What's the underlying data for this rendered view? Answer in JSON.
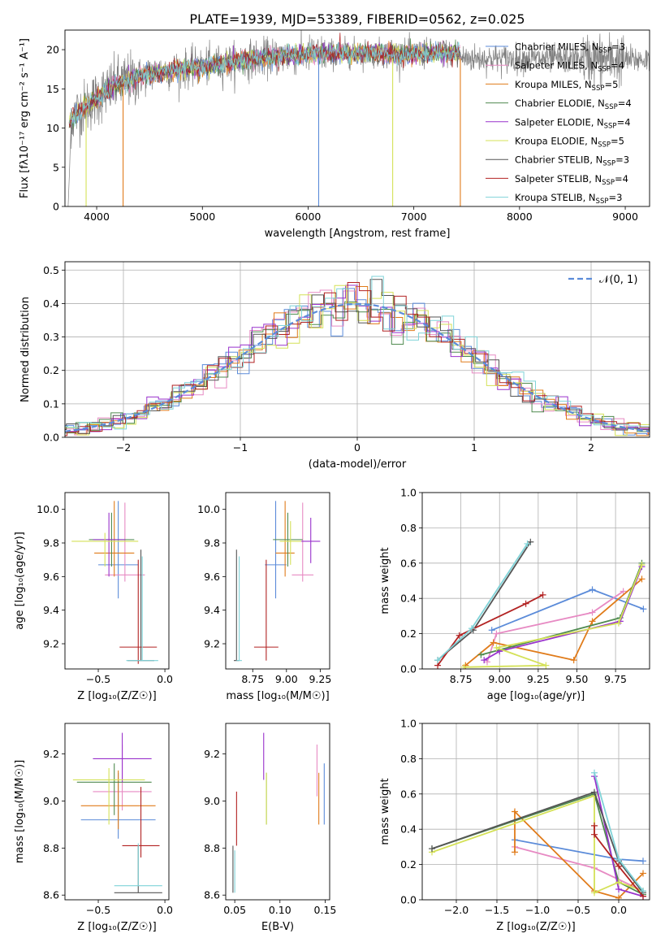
{
  "figure": {
    "title": "PLATE=1939, MJD=53389, FIBERID=0562, z=0.025"
  },
  "colors": {
    "chabrier_miles": "#5b8bd9",
    "salpeter_miles": "#e78ac3",
    "kroupa_miles": "#e07b1a",
    "chabrier_elodie": "#4f8a4f",
    "salpeter_elodie": "#9932cc",
    "kroupa_elodie": "#d4e157",
    "chabrier_stelib": "#555555",
    "salpeter_stelib": "#b22222",
    "kroupa_stelib": "#7fd3d8",
    "normal": "#5b8bd9",
    "spectrum": "#808080"
  },
  "chart_data": [
    {
      "id": "spectrum",
      "type": "line",
      "xlabel": "wavelength [Angstrom, rest frame]",
      "ylabel": "Flux [fλ10⁻¹⁷ erg cm⁻² s⁻¹ A⁻¹]",
      "xlim": [
        3700,
        9230
      ],
      "ylim": [
        0,
        22.5
      ],
      "xticks": [
        4000,
        5000,
        6000,
        7000,
        8000,
        9000
      ],
      "yticks": [
        0,
        5,
        10,
        15,
        20
      ],
      "legend_position": "top-right",
      "series": [
        {
          "name": "Chabrier MILES, N",
          "sub": "SSP",
          "suffix": "=3",
          "color_key": "chabrier_miles"
        },
        {
          "name": "Salpeter MILES, N",
          "sub": "SSP",
          "suffix": "=4",
          "color_key": "salpeter_miles"
        },
        {
          "name": "Kroupa MILES, N",
          "sub": "SSP",
          "suffix": "=5",
          "color_key": "kroupa_miles"
        },
        {
          "name": "Chabrier ELODIE, N",
          "sub": "SSP",
          "suffix": "=4",
          "color_key": "chabrier_elodie"
        },
        {
          "name": "Salpeter ELODIE, N",
          "sub": "SSP",
          "suffix": "=4",
          "color_key": "salpeter_elodie"
        },
        {
          "name": "Kroupa ELODIE, N",
          "sub": "SSP",
          "suffix": "=5",
          "color_key": "kroupa_elodie"
        },
        {
          "name": "Chabrier STELIB, N",
          "sub": "SSP",
          "suffix": "=3",
          "color_key": "chabrier_stelib"
        },
        {
          "name": "Salpeter STELIB, N",
          "sub": "SSP",
          "suffix": "=4",
          "color_key": "salpeter_stelib"
        },
        {
          "name": "Kroupa STELIB, N",
          "sub": "SSP",
          "suffix": "=3",
          "color_key": "kroupa_stelib"
        }
      ],
      "continuum": {
        "x": [
          3730,
          3800,
          3900,
          4000,
          4100,
          4200,
          4400,
          4600,
          4800,
          5000,
          5200,
          5400,
          5600,
          5800,
          6000,
          6200,
          6400,
          6600,
          6800,
          7000,
          7200,
          7400,
          7440
        ],
        "y": [
          10.5,
          11.8,
          12.8,
          13.8,
          14.8,
          15.6,
          16.5,
          17.2,
          17.5,
          17.8,
          18.2,
          18.7,
          19.0,
          19.2,
          19.4,
          19.5,
          19.6,
          19.6,
          19.4,
          19.4,
          19.6,
          19.5,
          19.4
        ]
      },
      "model_dropouts": [
        {
          "x": 3900,
          "color_key": "kroupa_elodie"
        },
        {
          "x": 4250,
          "color_key": "kroupa_miles"
        },
        {
          "x": 6100,
          "color_key": "chabrier_miles"
        },
        {
          "x": 6800,
          "color_key": "kroupa_elodie"
        },
        {
          "x": 7440,
          "color_key": "kroupa_miles"
        }
      ]
    },
    {
      "id": "residual_histogram",
      "type": "line",
      "xlabel": "(data-model)/error",
      "ylabel": "Normed distribution",
      "xlim": [
        -2.5,
        2.5
      ],
      "ylim": [
        0,
        0.525
      ],
      "xticks": [
        -2,
        -1,
        0,
        1,
        2
      ],
      "yticks": [
        0.0,
        0.1,
        0.2,
        0.3,
        0.4,
        0.5
      ],
      "grid": true,
      "legend_position": "top-right",
      "normal_label": "𝒩(0, 1)",
      "bin_width": 0.1,
      "approx_profile": "normal distribution, peak ~0.40-0.50 near 0"
    },
    {
      "id": "age_vs_Z",
      "type": "scatter",
      "xlabel": "Z [log₁₀(Z/Z☉)]",
      "ylabel": "age  [log₁₀(age/yr)]",
      "xlim": [
        -0.75,
        0.03
      ],
      "ylim": [
        9.05,
        10.1
      ],
      "xticks": [
        -0.5,
        0.0
      ],
      "yticks": [
        9.2,
        9.4,
        9.6,
        9.8,
        10.0
      ],
      "points": [
        {
          "x": -0.35,
          "y": 9.67,
          "xerr": 0.15,
          "yerr": [
            0.2,
            0.38
          ],
          "color_key": "chabrier_miles"
        },
        {
          "x": -0.3,
          "y": 9.61,
          "xerr": 0.15,
          "yerr": [
            0.04,
            0.43
          ],
          "color_key": "salpeter_miles"
        },
        {
          "x": -0.38,
          "y": 9.74,
          "xerr": 0.15,
          "yerr": [
            0.14,
            0.31
          ],
          "color_key": "kroupa_miles"
        },
        {
          "x": -0.4,
          "y": 9.82,
          "xerr": 0.17,
          "yerr": [
            0.16,
            0.16
          ],
          "color_key": "chabrier_elodie"
        },
        {
          "x": -0.42,
          "y": 9.82,
          "xerr": 0.12,
          "yerr": [
            0.22,
            0.16
          ],
          "color_key": "salpeter_elodie"
        },
        {
          "x": -0.45,
          "y": 9.81,
          "xerr": 0.25,
          "yerr": [
            0.15,
            0.05
          ],
          "color_key": "kroupa_elodie"
        },
        {
          "x": -0.18,
          "y": 9.1,
          "xerr": 0.1,
          "yerr": [
            0.0,
            0.66
          ],
          "color_key": "chabrier_stelib"
        },
        {
          "x": -0.2,
          "y": 9.18,
          "xerr": 0.14,
          "yerr": [
            0.1,
            0.52
          ],
          "color_key": "salpeter_stelib"
        },
        {
          "x": -0.17,
          "y": 9.1,
          "xerr": 0.12,
          "yerr": [
            0.0,
            0.62
          ],
          "color_key": "kroupa_stelib"
        }
      ]
    },
    {
      "id": "age_vs_mass",
      "type": "scatter",
      "xlabel": "mass [log₁₀(M/M☉)]",
      "ylabel": "",
      "xlim": [
        8.55,
        9.32
      ],
      "ylim": [
        9.05,
        10.1
      ],
      "xticks": [
        8.75,
        9.0,
        9.25
      ],
      "yticks": [
        9.2,
        9.4,
        9.6,
        9.8,
        10.0
      ],
      "points": [
        {
          "x": 8.92,
          "y": 9.67,
          "xerr": 0.08,
          "yerr": [
            0.2,
            0.38
          ],
          "color_key": "chabrier_miles"
        },
        {
          "x": 9.12,
          "y": 9.61,
          "xerr": 0.08,
          "yerr": [
            0.04,
            0.43
          ],
          "color_key": "salpeter_miles"
        },
        {
          "x": 8.99,
          "y": 9.74,
          "xerr": 0.07,
          "yerr": [
            0.14,
            0.31
          ],
          "color_key": "kroupa_miles"
        },
        {
          "x": 9.01,
          "y": 9.82,
          "xerr": 0.11,
          "yerr": [
            0.16,
            0.16
          ],
          "color_key": "chabrier_elodie"
        },
        {
          "x": 9.18,
          "y": 9.81,
          "xerr": 0.07,
          "yerr": [
            0.13,
            0.14
          ],
          "color_key": "salpeter_elodie"
        },
        {
          "x": 9.03,
          "y": 9.81,
          "xerr": 0.08,
          "yerr": [
            0.14,
            0.12
          ],
          "color_key": "kroupa_elodie"
        },
        {
          "x": 8.63,
          "y": 9.1,
          "xerr": 0.02,
          "yerr": [
            0.0,
            0.66
          ],
          "color_key": "chabrier_stelib"
        },
        {
          "x": 8.85,
          "y": 9.18,
          "xerr": 0.09,
          "yerr": [
            0.08,
            0.52
          ],
          "color_key": "salpeter_stelib"
        },
        {
          "x": 8.65,
          "y": 9.1,
          "xerr": 0.02,
          "yerr": [
            0.0,
            0.62
          ],
          "color_key": "kroupa_stelib"
        }
      ]
    },
    {
      "id": "weight_vs_age",
      "type": "line",
      "xlabel": "age  [log₁₀(age/yr)]",
      "ylabel": "mass weight",
      "xlim": [
        8.5,
        9.97
      ],
      "ylim": [
        0,
        1.0
      ],
      "xticks": [
        8.75,
        9.0,
        9.25,
        9.5,
        9.75
      ],
      "yticks": [
        0.0,
        0.2,
        0.4,
        0.6,
        0.8,
        1.0
      ],
      "grid": true,
      "series": [
        {
          "color_key": "chabrier_miles",
          "x": [
            9.93,
            9.6,
            8.95
          ],
          "y": [
            0.34,
            0.45,
            0.22
          ]
        },
        {
          "color_key": "salpeter_miles",
          "x": [
            9.8,
            9.6,
            8.98,
            8.92
          ],
          "y": [
            0.44,
            0.32,
            0.2,
            0.04
          ]
        },
        {
          "color_key": "kroupa_miles",
          "x": [
            9.92,
            9.6,
            9.48,
            8.96,
            8.78
          ],
          "y": [
            0.51,
            0.27,
            0.05,
            0.15,
            0.02
          ]
        },
        {
          "color_key": "chabrier_elodie",
          "x": [
            9.92,
            9.78,
            8.88
          ],
          "y": [
            0.6,
            0.29,
            0.08
          ]
        },
        {
          "color_key": "salpeter_elodie",
          "x": [
            9.92,
            9.78,
            9.0,
            8.9
          ],
          "y": [
            0.58,
            0.27,
            0.1,
            0.05
          ]
        },
        {
          "color_key": "kroupa_elodie",
          "x": [
            9.92,
            9.77,
            8.98,
            9.3,
            8.77
          ],
          "y": [
            0.59,
            0.26,
            0.12,
            0.02,
            0.01
          ]
        },
        {
          "color_key": "chabrier_stelib",
          "x": [
            9.2,
            8.83,
            8.6
          ],
          "y": [
            0.72,
            0.22,
            0.05
          ]
        },
        {
          "color_key": "salpeter_stelib",
          "x": [
            9.28,
            9.17,
            8.74,
            8.6
          ],
          "y": [
            0.42,
            0.37,
            0.19,
            0.02
          ]
        },
        {
          "color_key": "kroupa_stelib",
          "x": [
            9.18,
            8.82,
            8.6
          ],
          "y": [
            0.71,
            0.23,
            0.05
          ]
        }
      ]
    },
    {
      "id": "mass_vs_Z",
      "type": "scatter",
      "xlabel": "Z [log₁₀(Z/Z☉)]",
      "ylabel": "mass [log₁₀(M/M☉)]",
      "xlim": [
        -0.75,
        0.03
      ],
      "ylim": [
        8.58,
        9.33
      ],
      "xticks": [
        -0.5,
        0.0
      ],
      "yticks": [
        8.6,
        8.8,
        9.0,
        9.2
      ],
      "points": [
        {
          "x": -0.35,
          "y": 8.92,
          "xerr": 0.28,
          "yerr": [
            0.08,
            0.2
          ],
          "color_key": "chabrier_miles"
        },
        {
          "x": -0.32,
          "y": 9.04,
          "xerr": 0.22,
          "yerr": [
            0.08,
            0.2
          ],
          "color_key": "salpeter_miles"
        },
        {
          "x": -0.35,
          "y": 8.98,
          "xerr": 0.28,
          "yerr": [
            0.1,
            0.15
          ],
          "color_key": "kroupa_miles"
        },
        {
          "x": -0.38,
          "y": 9.08,
          "xerr": 0.28,
          "yerr": [
            0.14,
            0.08
          ],
          "color_key": "chabrier_elodie"
        },
        {
          "x": -0.32,
          "y": 9.18,
          "xerr": 0.22,
          "yerr": [
            0.1,
            0.11
          ],
          "color_key": "salpeter_elodie"
        },
        {
          "x": -0.42,
          "y": 9.09,
          "xerr": 0.27,
          "yerr": [
            0.19,
            0.05
          ],
          "color_key": "kroupa_elodie"
        },
        {
          "x": -0.2,
          "y": 8.61,
          "xerr": 0.18,
          "yerr": [
            0.0,
            0.2
          ],
          "color_key": "chabrier_stelib"
        },
        {
          "x": -0.18,
          "y": 8.81,
          "xerr": 0.14,
          "yerr": [
            0.05,
            0.25
          ],
          "color_key": "salpeter_stelib"
        },
        {
          "x": -0.2,
          "y": 8.64,
          "xerr": 0.18,
          "yerr": [
            0.0,
            0.18
          ],
          "color_key": "kroupa_stelib"
        }
      ]
    },
    {
      "id": "mass_vs_ebv",
      "type": "scatter",
      "xlabel": "E(B-V)",
      "ylabel": "",
      "xlim": [
        0.04,
        0.155
      ],
      "ylim": [
        8.58,
        9.33
      ],
      "xticks": [
        0.05,
        0.1,
        0.15
      ],
      "yticks": [
        8.6,
        8.8,
        9.0,
        9.2
      ],
      "points": [
        {
          "x": 0.149,
          "y": 9.02,
          "yerr": [
            0.12,
            0.14
          ],
          "color_key": "chabrier_miles"
        },
        {
          "x": 0.141,
          "y": 9.1,
          "yerr": [
            0.08,
            0.14
          ],
          "color_key": "salpeter_miles"
        },
        {
          "x": 0.143,
          "y": 9.0,
          "yerr": [
            0.1,
            0.12
          ],
          "color_key": "kroupa_miles"
        },
        {
          "x": 0.085,
          "y": 9.0,
          "yerr": [
            0.1,
            0.12
          ],
          "color_key": "chabrier_elodie"
        },
        {
          "x": 0.082,
          "y": 9.19,
          "yerr": [
            0.1,
            0.1
          ],
          "color_key": "salpeter_elodie"
        },
        {
          "x": 0.085,
          "y": 9.05,
          "yerr": [
            0.15,
            0.07
          ],
          "color_key": "kroupa_elodie"
        },
        {
          "x": 0.048,
          "y": 8.71,
          "yerr": [
            0.1,
            0.1
          ],
          "color_key": "chabrier_stelib"
        },
        {
          "x": 0.052,
          "y": 8.92,
          "yerr": [
            0.11,
            0.12
          ],
          "color_key": "salpeter_stelib"
        },
        {
          "x": 0.05,
          "y": 8.71,
          "yerr": [
            0.1,
            0.08
          ],
          "color_key": "kroupa_stelib"
        }
      ]
    },
    {
      "id": "weight_vs_Z",
      "type": "line",
      "xlabel": "Z [log₁₀(Z/Z☉)]",
      "ylabel": "mass weight",
      "xlim": [
        -2.42,
        0.38
      ],
      "ylim": [
        0,
        1.0
      ],
      "xticks": [
        -2.0,
        -1.5,
        -1.0,
        -0.5,
        0.0
      ],
      "yticks": [
        0.0,
        0.2,
        0.4,
        0.6,
        0.8,
        1.0
      ],
      "grid": true,
      "series": [
        {
          "color_key": "chabrier_miles",
          "x": [
            -1.28,
            0.0,
            0.3
          ],
          "y": [
            0.34,
            0.23,
            0.22
          ]
        },
        {
          "color_key": "salpeter_miles",
          "x": [
            -1.28,
            -0.3,
            0.3
          ],
          "y": [
            0.3,
            0.18,
            0.05
          ]
        },
        {
          "color_key": "kroupa_miles",
          "x": [
            -1.28,
            -1.28,
            -0.3,
            0.0,
            0.3
          ],
          "y": [
            0.27,
            0.5,
            0.05,
            0.01,
            0.15
          ]
        },
        {
          "color_key": "chabrier_elodie",
          "x": [
            -2.3,
            -0.3,
            0.0,
            0.3
          ],
          "y": [
            0.29,
            0.6,
            0.1,
            0.03
          ]
        },
        {
          "color_key": "salpeter_elodie",
          "x": [
            -0.3,
            0.0,
            0.3
          ],
          "y": [
            0.7,
            0.06,
            0.02
          ]
        },
        {
          "color_key": "kroupa_elodie",
          "x": [
            -2.3,
            -0.3,
            -0.3,
            0.0,
            0.3
          ],
          "y": [
            0.27,
            0.59,
            0.04,
            0.1,
            0.05
          ]
        },
        {
          "color_key": "chabrier_stelib",
          "x": [
            -2.3,
            -0.3,
            0.0,
            0.3
          ],
          "y": [
            0.29,
            0.61,
            0.22,
            0.04
          ]
        },
        {
          "color_key": "salpeter_stelib",
          "x": [
            -0.3,
            -0.3,
            0.0,
            0.3
          ],
          "y": [
            0.42,
            0.37,
            0.19,
            0.02
          ]
        },
        {
          "color_key": "kroupa_stelib",
          "x": [
            -0.3,
            0.0,
            0.3
          ],
          "y": [
            0.72,
            0.23,
            0.05
          ]
        }
      ]
    }
  ]
}
